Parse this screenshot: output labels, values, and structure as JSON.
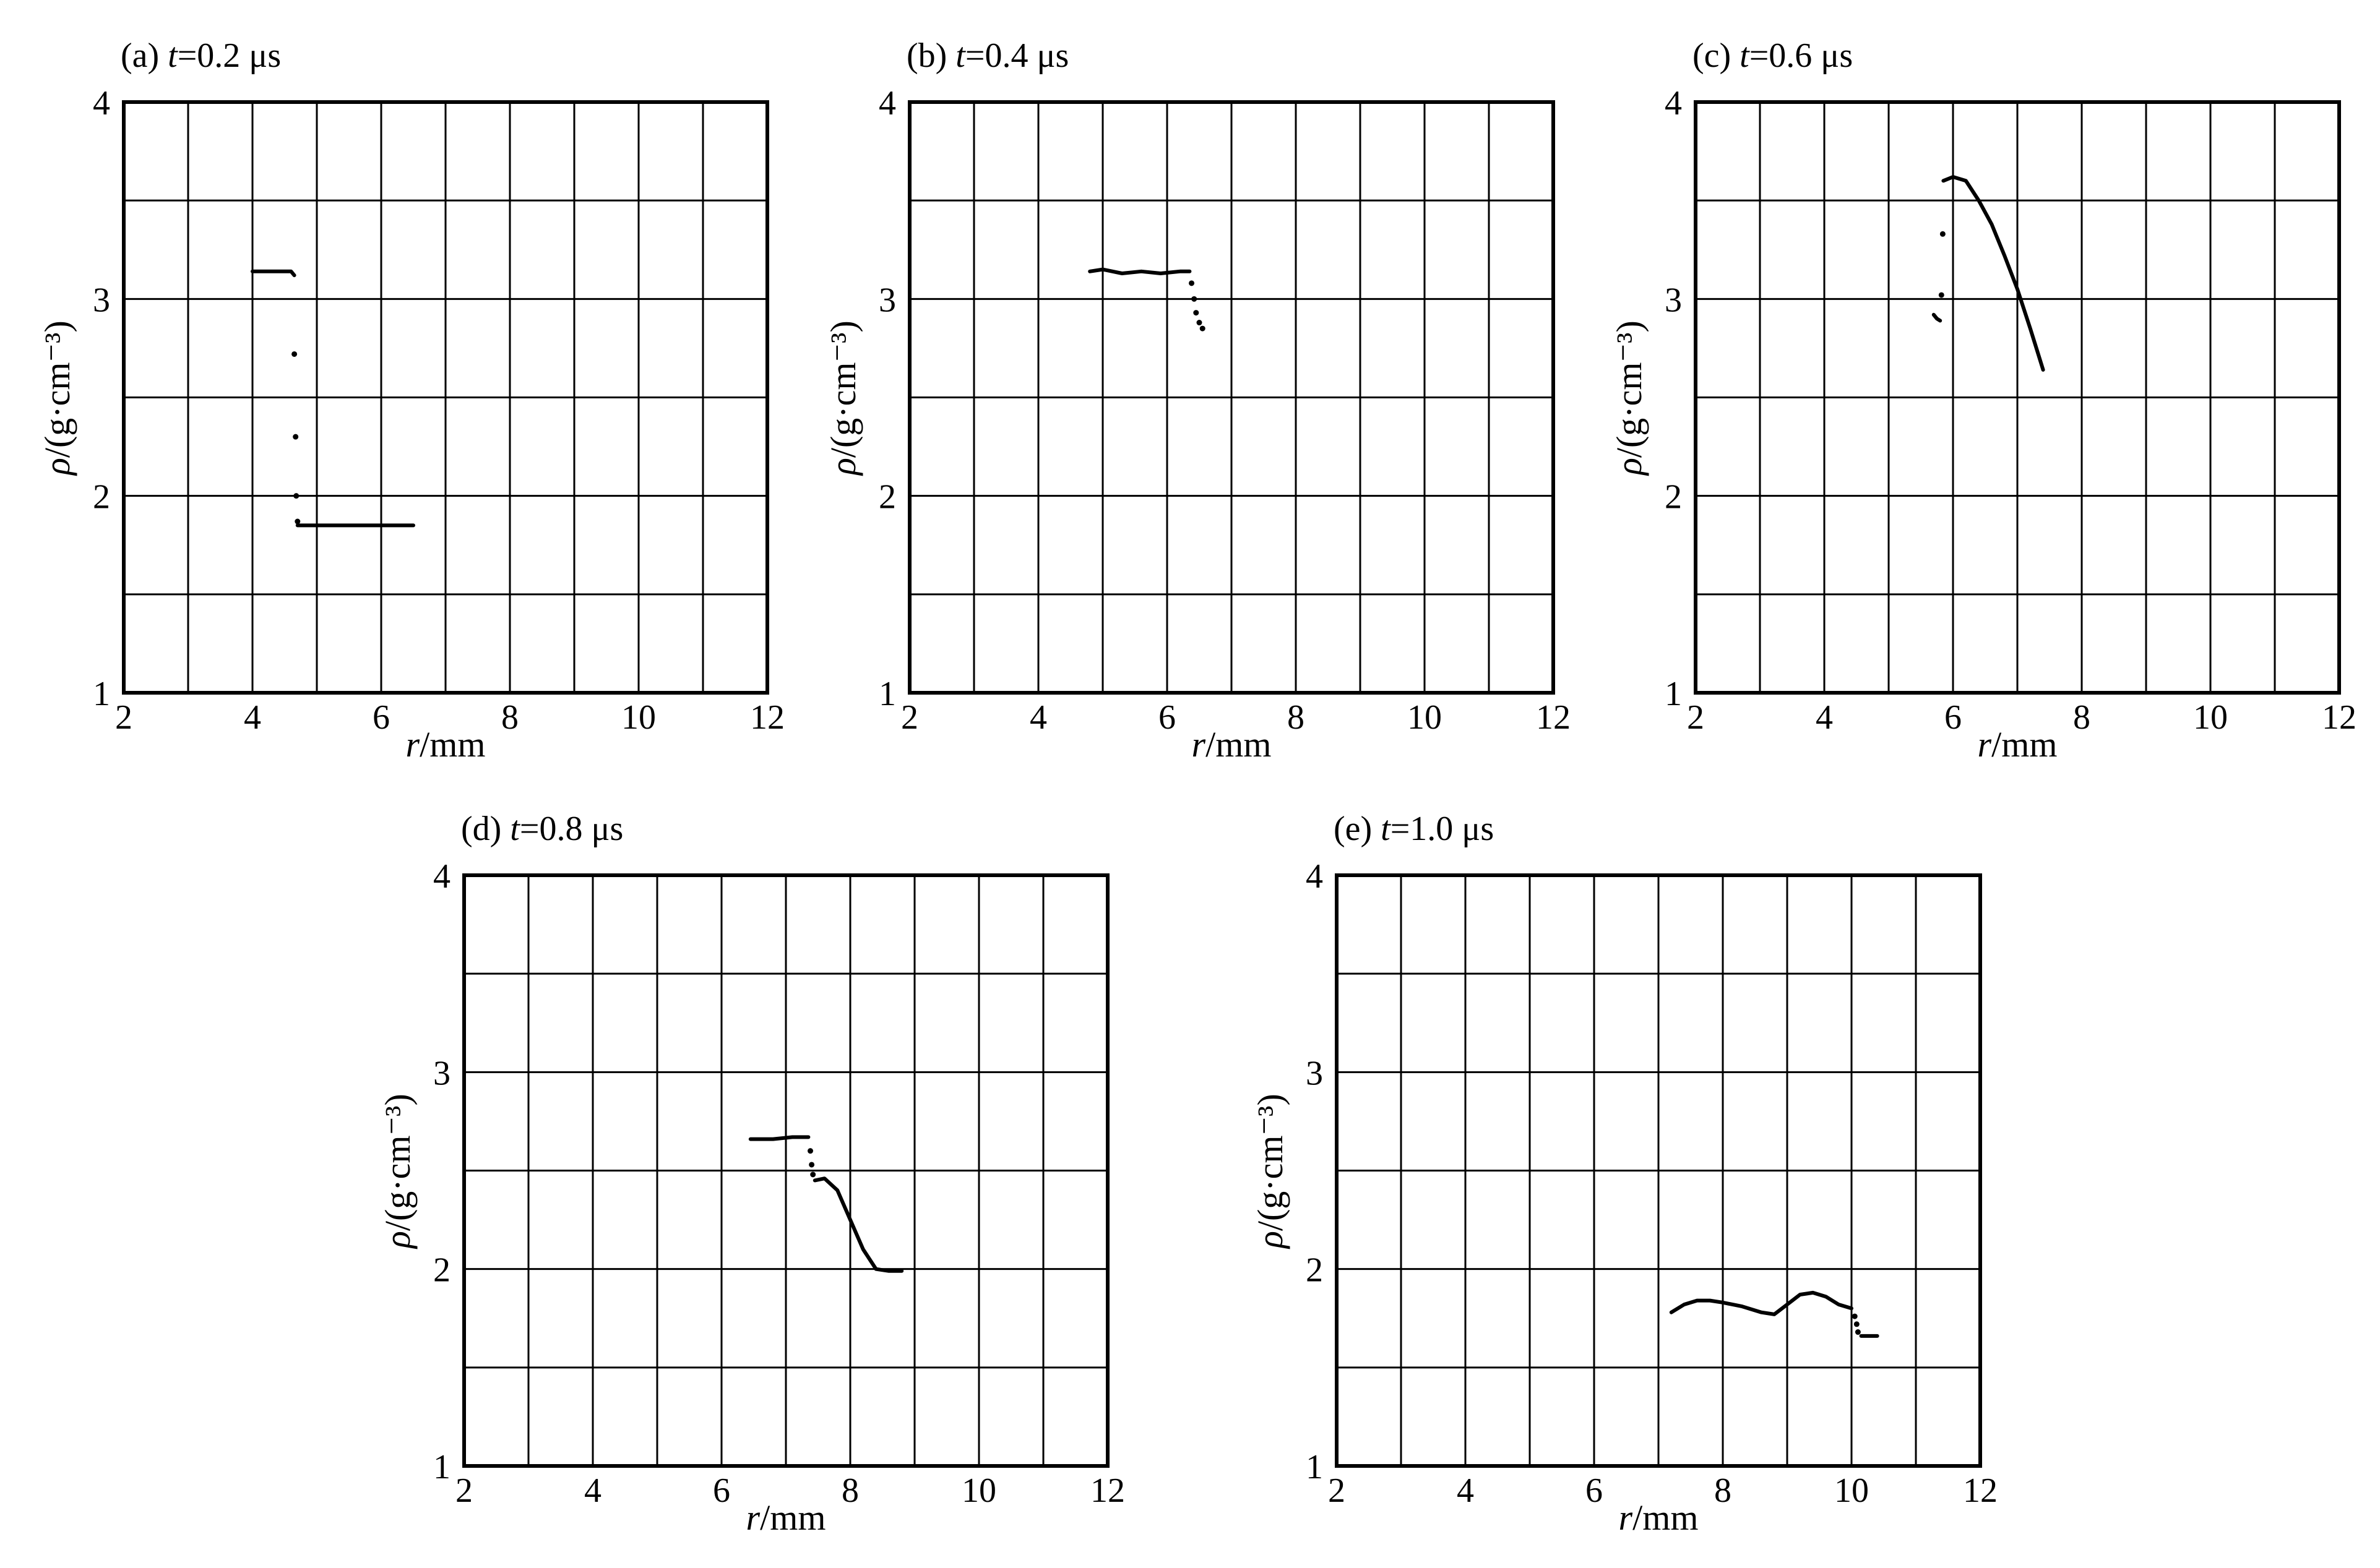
{
  "chart_data": [
    {
      "type": "scatter",
      "panel_label": "(a)",
      "title_var": "t",
      "title_rest": "=0.2 μs",
      "xlabel_var": "r",
      "xlabel_unit": "/mm",
      "ylabel_var": "ρ",
      "ylabel_unit": "/(g·cm⁻³)",
      "xlim": [
        2,
        12
      ],
      "ylim": [
        1,
        4
      ],
      "xticks": [
        "2",
        "4",
        "6",
        "8",
        "10",
        "12"
      ],
      "yticks": [
        "1",
        "2",
        "3",
        "4"
      ],
      "grid": true,
      "series": [
        {
          "style": "line",
          "points": [
            [
              4.0,
              3.14
            ],
            [
              4.3,
              3.14
            ],
            [
              4.6,
              3.14
            ],
            [
              4.65,
              3.12
            ]
          ]
        },
        {
          "style": "dots",
          "points": [
            [
              4.65,
              2.72
            ],
            [
              4.67,
              2.3
            ],
            [
              4.68,
              2.0
            ],
            [
              4.7,
              1.87
            ]
          ]
        },
        {
          "style": "line",
          "points": [
            [
              4.7,
              1.85
            ],
            [
              5.5,
              1.85
            ],
            [
              6.5,
              1.85
            ]
          ]
        }
      ]
    },
    {
      "type": "scatter",
      "panel_label": "(b)",
      "title_var": "t",
      "title_rest": "=0.4 μs",
      "xlabel_var": "r",
      "xlabel_unit": "/mm",
      "ylabel_var": "ρ",
      "ylabel_unit": "/(g·cm⁻³)",
      "xlim": [
        2,
        12
      ],
      "ylim": [
        1,
        4
      ],
      "xticks": [
        "2",
        "4",
        "6",
        "8",
        "10",
        "12"
      ],
      "yticks": [
        "1",
        "2",
        "3",
        "4"
      ],
      "grid": true,
      "series": [
        {
          "style": "line",
          "points": [
            [
              4.8,
              3.14
            ],
            [
              5.0,
              3.15
            ],
            [
              5.3,
              3.13
            ],
            [
              5.6,
              3.14
            ],
            [
              5.9,
              3.13
            ],
            [
              6.2,
              3.14
            ],
            [
              6.35,
              3.14
            ]
          ]
        },
        {
          "style": "dots",
          "points": [
            [
              6.38,
              3.08
            ],
            [
              6.42,
              3.0
            ],
            [
              6.45,
              2.93
            ],
            [
              6.5,
              2.88
            ],
            [
              6.55,
              2.85
            ]
          ]
        }
      ]
    },
    {
      "type": "scatter",
      "panel_label": "(c)",
      "title_var": "t",
      "title_rest": "=0.6 μs",
      "xlabel_var": "r",
      "xlabel_unit": "/mm",
      "ylabel_var": "ρ",
      "ylabel_unit": "/(g·cm⁻³)",
      "xlim": [
        2,
        12
      ],
      "ylim": [
        1,
        4
      ],
      "xticks": [
        "2",
        "4",
        "6",
        "8",
        "10",
        "12"
      ],
      "yticks": [
        "1",
        "2",
        "3",
        "4"
      ],
      "grid": true,
      "series": [
        {
          "style": "line",
          "points": [
            [
              5.7,
              2.92
            ],
            [
              5.75,
              2.9
            ],
            [
              5.8,
              2.89
            ]
          ]
        },
        {
          "style": "dots",
          "points": [
            [
              5.82,
              3.02
            ],
            [
              5.84,
              3.33
            ]
          ]
        },
        {
          "style": "line",
          "points": [
            [
              5.85,
              3.6
            ],
            [
              6.0,
              3.62
            ],
            [
              6.2,
              3.6
            ],
            [
              6.4,
              3.5
            ],
            [
              6.6,
              3.38
            ],
            [
              6.8,
              3.22
            ],
            [
              7.0,
              3.05
            ],
            [
              7.2,
              2.85
            ],
            [
              7.4,
              2.64
            ]
          ]
        }
      ]
    },
    {
      "type": "scatter",
      "panel_label": "(d)",
      "title_var": "t",
      "title_rest": "=0.8 μs",
      "xlabel_var": "r",
      "xlabel_unit": "/mm",
      "ylabel_var": "ρ",
      "ylabel_unit": "/(g·cm⁻³)",
      "xlim": [
        2,
        12
      ],
      "ylim": [
        1,
        4
      ],
      "xticks": [
        "2",
        "4",
        "6",
        "8",
        "10",
        "12"
      ],
      "yticks": [
        "1",
        "2",
        "3",
        "4"
      ],
      "grid": true,
      "series": [
        {
          "style": "line",
          "points": [
            [
              6.45,
              2.66
            ],
            [
              6.8,
              2.66
            ],
            [
              7.1,
              2.67
            ],
            [
              7.35,
              2.67
            ]
          ]
        },
        {
          "style": "dots",
          "points": [
            [
              7.38,
              2.6
            ],
            [
              7.4,
              2.53
            ],
            [
              7.42,
              2.48
            ]
          ]
        },
        {
          "style": "line",
          "points": [
            [
              7.45,
              2.45
            ],
            [
              7.6,
              2.46
            ],
            [
              7.8,
              2.4
            ],
            [
              8.0,
              2.25
            ],
            [
              8.2,
              2.1
            ],
            [
              8.4,
              2.0
            ],
            [
              8.6,
              1.99
            ],
            [
              8.8,
              1.99
            ]
          ]
        }
      ]
    },
    {
      "type": "scatter",
      "panel_label": "(e)",
      "title_var": "t",
      "title_rest": "=1.0 μs",
      "xlabel_var": "r",
      "xlabel_unit": "/mm",
      "ylabel_var": "ρ",
      "ylabel_unit": "/(g·cm⁻³)",
      "xlim": [
        2,
        12
      ],
      "ylim": [
        1,
        4
      ],
      "xticks": [
        "2",
        "4",
        "6",
        "8",
        "10",
        "12"
      ],
      "yticks": [
        "1",
        "2",
        "3",
        "4"
      ],
      "grid": true,
      "series": [
        {
          "style": "line",
          "points": [
            [
              7.2,
              1.78
            ],
            [
              7.4,
              1.82
            ],
            [
              7.6,
              1.84
            ],
            [
              7.8,
              1.84
            ],
            [
              8.0,
              1.83
            ],
            [
              8.3,
              1.81
            ],
            [
              8.6,
              1.78
            ],
            [
              8.8,
              1.77
            ],
            [
              9.0,
              1.82
            ],
            [
              9.2,
              1.87
            ],
            [
              9.4,
              1.88
            ],
            [
              9.6,
              1.86
            ],
            [
              9.8,
              1.82
            ],
            [
              10.0,
              1.8
            ]
          ]
        },
        {
          "style": "dots",
          "points": [
            [
              10.05,
              1.76
            ],
            [
              10.08,
              1.72
            ],
            [
              10.1,
              1.68
            ]
          ]
        },
        {
          "style": "line",
          "points": [
            [
              10.15,
              1.66
            ],
            [
              10.4,
              1.66
            ]
          ]
        }
      ]
    }
  ]
}
